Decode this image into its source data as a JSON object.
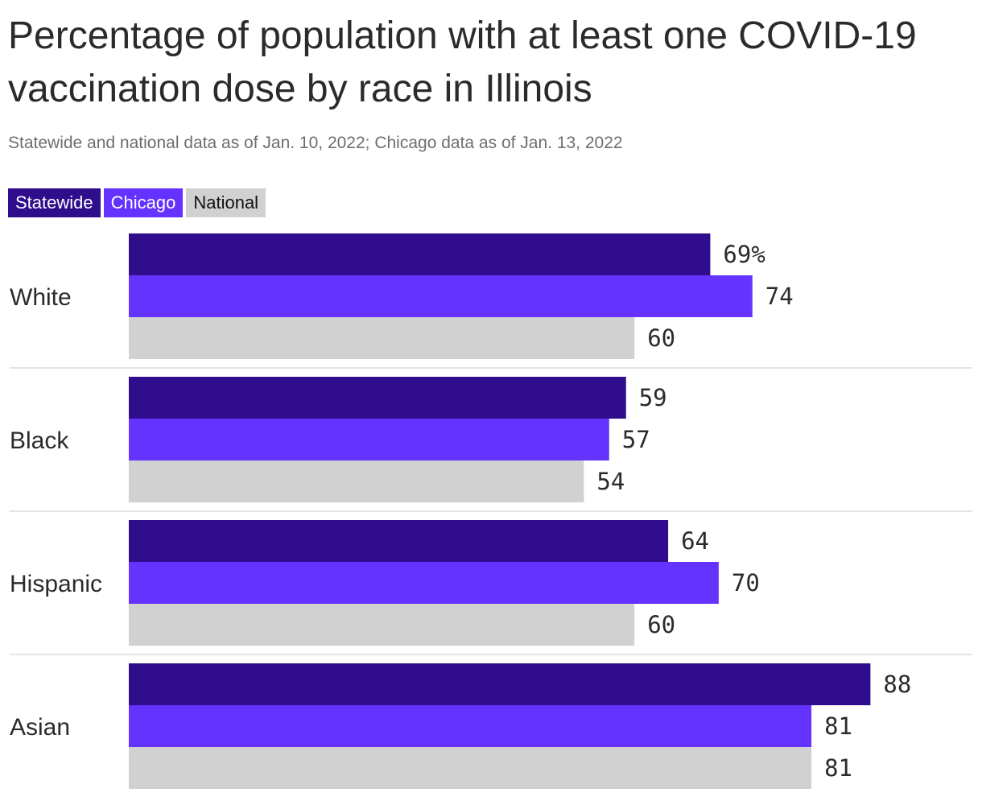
{
  "title": "Percentage of population with at least one COVID-19 vaccination dose by race in Illinois",
  "subtitle": "Statewide and national data as of Jan. 10, 2022; Chicago data as of Jan. 13, 2022",
  "colors": {
    "statewide": "#300d8c",
    "chicago": "#6533ff",
    "national": "#d1d1d1"
  },
  "chart_data": {
    "type": "bar",
    "orientation": "horizontal",
    "unit": "%",
    "categories": [
      "White",
      "Black",
      "Hispanic",
      "Asian"
    ],
    "series": [
      {
        "name": "Statewide",
        "values": [
          69,
          59,
          64,
          88
        ],
        "color": "#300d8c"
      },
      {
        "name": "Chicago",
        "values": [
          74,
          57,
          70,
          81
        ],
        "color": "#6533ff"
      },
      {
        "name": "National",
        "values": [
          60,
          54,
          60,
          81
        ],
        "color": "#d1d1d1"
      }
    ],
    "legend_position": "top-left",
    "grid": false
  }
}
